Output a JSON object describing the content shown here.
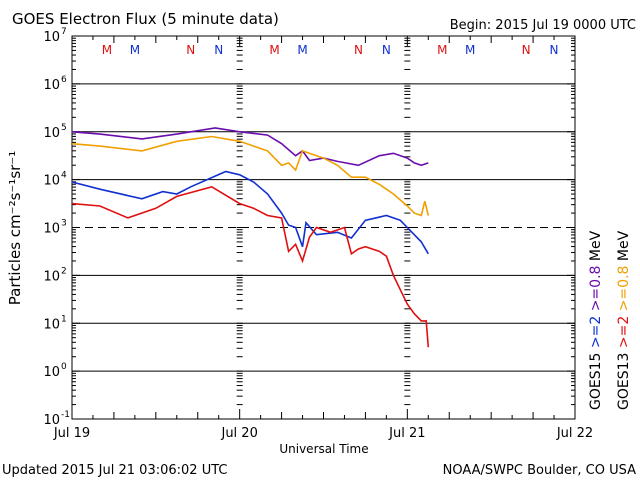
{
  "chart_data": {
    "type": "line",
    "title": "GOES Electron Flux (5 minute data)",
    "begin": "Begin: 2015 Jul 19 0000 UTC",
    "xlabel": "Universal Time",
    "ylabel": "Particles cm⁻²s⁻¹sr⁻¹",
    "x_unit": "hours since 2015 Jul 19 0000 UTC",
    "xlim": [
      0,
      72
    ],
    "x_ticks": [
      {
        "h": 0,
        "label": "Jul 19"
      },
      {
        "h": 24,
        "label": "Jul 20"
      },
      {
        "h": 48,
        "label": "Jul 21"
      },
      {
        "h": 72,
        "label": "Jul 22"
      }
    ],
    "yscale": "log",
    "ylim_log10": [
      -1,
      7
    ],
    "y_ticks": [
      {
        "exp": 7,
        "label": "10",
        "sup": "7"
      },
      {
        "exp": 6,
        "label": "10",
        "sup": "6"
      },
      {
        "exp": 5,
        "label": "10",
        "sup": "5"
      },
      {
        "exp": 4,
        "label": "10",
        "sup": "4"
      },
      {
        "exp": 3,
        "label": "10",
        "sup": "3"
      },
      {
        "exp": 2,
        "label": "10",
        "sup": "2"
      },
      {
        "exp": 1,
        "label": "10",
        "sup": "1"
      },
      {
        "exp": 0,
        "label": "10",
        "sup": "0"
      },
      {
        "exp": -1,
        "label": "10",
        "sup": "-1"
      }
    ],
    "threshold_log10": 3,
    "grid": true,
    "series": [
      {
        "name": ">=0.8 MeV",
        "satellite": "GOES15",
        "color": "#6a0dad",
        "x": [
          0,
          4,
          10,
          15,
          20.5,
          24,
          28,
          30,
          32,
          33,
          34,
          36,
          38,
          41,
          44,
          46,
          48,
          49,
          50,
          51
        ],
        "log10": [
          5.0,
          4.95,
          4.85,
          4.95,
          5.08,
          5.0,
          4.93,
          4.75,
          4.5,
          4.6,
          4.4,
          4.45,
          4.38,
          4.3,
          4.5,
          4.55,
          4.45,
          4.35,
          4.3,
          4.35
        ]
      },
      {
        "name": ">=0.8 MeV",
        "satellite": "GOES13",
        "color": "#f0a000",
        "x": [
          0,
          4,
          10,
          15,
          20,
          24,
          28,
          30,
          31,
          32,
          33,
          35,
          36,
          38,
          40,
          42,
          44,
          46,
          48,
          49,
          50,
          50.5,
          51
        ],
        "log10": [
          4.75,
          4.7,
          4.6,
          4.8,
          4.9,
          4.8,
          4.6,
          4.3,
          4.35,
          4.2,
          4.6,
          4.5,
          4.45,
          4.3,
          4.05,
          4.05,
          3.9,
          3.7,
          3.45,
          3.3,
          3.25,
          3.55,
          3.25
        ]
      },
      {
        "name": ">=2 MeV",
        "satellite": "GOES15",
        "color": "#1030d0",
        "x": [
          0,
          4,
          10,
          13,
          15,
          17,
          22,
          24,
          26,
          28,
          30,
          31,
          32,
          33,
          33.5,
          35,
          38,
          40,
          42,
          45,
          47,
          48,
          49,
          50,
          51
        ],
        "log10": [
          3.95,
          3.8,
          3.6,
          3.75,
          3.7,
          3.85,
          4.17,
          4.1,
          3.95,
          3.7,
          3.3,
          3.05,
          3.0,
          2.6,
          3.1,
          2.85,
          2.9,
          2.78,
          3.15,
          3.25,
          3.15,
          3.0,
          2.85,
          2.7,
          2.45
        ]
      },
      {
        "name": ">=2 MeV",
        "satellite": "GOES13",
        "color": "#e01010",
        "x": [
          0,
          4,
          8,
          12,
          15,
          20,
          24,
          26,
          28,
          30,
          31,
          32,
          33,
          34,
          35,
          37,
          39,
          40,
          41,
          42,
          44,
          45,
          46,
          47,
          48,
          49,
          50,
          50.7,
          51
        ],
        "log10": [
          3.5,
          3.45,
          3.2,
          3.4,
          3.65,
          3.85,
          3.5,
          3.4,
          3.25,
          3.2,
          2.5,
          2.65,
          2.3,
          2.8,
          3.0,
          2.9,
          3.0,
          2.45,
          2.55,
          2.6,
          2.5,
          2.4,
          2.0,
          1.7,
          1.4,
          1.2,
          1.05,
          1.05,
          0.5
        ]
      }
    ],
    "markers": [
      {
        "label": "M",
        "color": "#e01010",
        "offset_h": 5
      },
      {
        "label": "M",
        "color": "#1030d0",
        "offset_h": 9
      },
      {
        "label": "N",
        "color": "#e01010",
        "offset_h": 17
      },
      {
        "label": "N",
        "color": "#1030d0",
        "offset_h": 21
      }
    ],
    "legend": {
      "col1": [
        {
          "text": "GOES15",
          "color": "#000000"
        },
        {
          "text": ">=2",
          "color": "#1030d0"
        },
        {
          "text": ">=0.8",
          "color": "#6a0dad"
        },
        {
          "text": "MeV",
          "color": "#000000"
        }
      ],
      "col2": [
        {
          "text": "GOES13",
          "color": "#000000"
        },
        {
          "text": ">=2",
          "color": "#e01010"
        },
        {
          "text": ">=0.8",
          "color": "#f0a000"
        },
        {
          "text": "MeV",
          "color": "#000000"
        }
      ],
      "placement": "right"
    },
    "footer_left": "Updated 2015 Jul 21 03:06:02 UTC",
    "footer_right": "NOAA/SWPC Boulder, CO USA"
  }
}
